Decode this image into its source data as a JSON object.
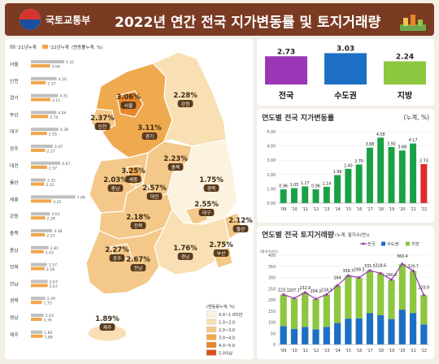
{
  "header": {
    "agency": "국토교통부",
    "title": "2022년 연간 전국 지가변동률 및 토지거래량"
  },
  "legend_top": {
    "y2021": "'21년누계",
    "y2022": "'22년누계",
    "note": "(변동률누계, %)"
  },
  "regions": [
    {
      "name": "서울",
      "v2021": 5.31,
      "v2022": 3.06
    },
    {
      "name": "인천",
      "v2021": 4.1,
      "v2022": 2.37
    },
    {
      "name": "경기",
      "v2021": 4.31,
      "v2022": 3.11
    },
    {
      "name": "부산",
      "v2021": 4.04,
      "v2022": 2.75
    },
    {
      "name": "대구",
      "v2021": 4.38,
      "v2022": 2.55
    },
    {
      "name": "광주",
      "v2021": 3.47,
      "v2022": 2.27
    },
    {
      "name": "대전",
      "v2021": 4.67,
      "v2022": 2.57
    },
    {
      "name": "울산",
      "v2021": 2.32,
      "v2022": 2.12
    },
    {
      "name": "세종",
      "v2021": 7.06,
      "v2022": 3.25
    },
    {
      "name": "강원",
      "v2021": 3.03,
      "v2022": 2.28
    },
    {
      "name": "충북",
      "v2021": 3.38,
      "v2022": 2.23
    },
    {
      "name": "충남",
      "v2021": 2.81,
      "v2022": 2.03
    },
    {
      "name": "전북",
      "v2021": 2.57,
      "v2022": 2.18
    },
    {
      "name": "전남",
      "v2021": 2.67,
      "v2022": 2.67
    },
    {
      "name": "경북",
      "v2021": 2.29,
      "v2022": 1.75
    },
    {
      "name": "경남",
      "v2021": 2.03,
      "v2022": 1.76
    },
    {
      "name": "제주",
      "v2021": 1.85,
      "v2022": 1.89
    }
  ],
  "map_labels": [
    {
      "name": "서울",
      "value": "3.06%"
    },
    {
      "name": "인천",
      "value": "2.37%"
    },
    {
      "name": "경기",
      "value": "3.11%"
    },
    {
      "name": "강원",
      "value": "2.28%"
    },
    {
      "name": "충북",
      "value": "2.23%"
    },
    {
      "name": "세종",
      "value": "3.25%"
    },
    {
      "name": "충남",
      "value": "2.03%"
    },
    {
      "name": "대전",
      "value": "2.57%"
    },
    {
      "name": "경북",
      "value": "1.75%"
    },
    {
      "name": "대구",
      "value": "2.55%"
    },
    {
      "name": "전북",
      "value": "2.18%"
    },
    {
      "name": "울산",
      "value": "2.12%"
    },
    {
      "name": "광주",
      "value": "2.27%"
    },
    {
      "name": "전남",
      "value": "2.67%"
    },
    {
      "name": "경남",
      "value": "1.76%"
    },
    {
      "name": "부산",
      "value": "2.75%"
    },
    {
      "name": "제주",
      "value": "1.89%"
    }
  ],
  "map_legend": {
    "title": "(변동률누계, %)",
    "bins": [
      {
        "label": "0.0~1.0미만",
        "color": "#fbf2df"
      },
      {
        "label": "1.0~2.0",
        "color": "#f8e0b4"
      },
      {
        "label": "2.0~3.0",
        "color": "#f4c889"
      },
      {
        "label": "3.0~4.0",
        "color": "#efa94e"
      },
      {
        "label": "4.0~5.0",
        "color": "#e8862a"
      },
      {
        "label": "5.0이상",
        "color": "#d94f1c"
      }
    ]
  },
  "summary": [
    {
      "label": "전국",
      "value": "2.73",
      "color": "#9b37b6"
    },
    {
      "label": "수도권",
      "value": "3.03",
      "color": "#1d6fc4"
    },
    {
      "label": "지방",
      "value": "2.24",
      "color": "#8dc63f"
    }
  ],
  "chart_data": [
    {
      "type": "bar",
      "title": "연도별 전국 지가변동률",
      "unit": "(누계, %)",
      "categories": [
        "'09",
        "'10",
        "'11",
        "'12",
        "'13",
        "'14",
        "'15",
        "'16",
        "'17",
        "'18",
        "'19",
        "'20",
        "'21",
        "'22"
      ],
      "values": [
        0.96,
        1.05,
        1.17,
        0.96,
        1.14,
        1.96,
        2.4,
        2.7,
        3.88,
        4.58,
        3.92,
        3.68,
        4.17,
        2.73
      ],
      "ylim": [
        0,
        5
      ],
      "yticks": [
        "0.00",
        "1.00",
        "2.00",
        "3.00",
        "4.00",
        "5.00"
      ],
      "color_bar": "#1aa146",
      "color_last": "#e02b2b"
    },
    {
      "type": "bar",
      "title": "연도별 전국 토지거래량",
      "unit": "(누계, 필지수(만))",
      "ylabel": "(필지수(만))",
      "categories": [
        "'09",
        "'10",
        "'11",
        "'12",
        "'13",
        "'14",
        "'15",
        "'16",
        "'17",
        "'18",
        "'19",
        "'20",
        "'21",
        "'22"
      ],
      "series": [
        {
          "name": "전국",
          "values": [
            223.1,
            207.1,
            232.9,
            204.2,
            224.1,
            264.0,
            308.7,
            299.5,
            331.5,
            318.6,
            290.2,
            360.4,
            329.7,
            220.9
          ],
          "color": "#9b37b6"
        },
        {
          "name": "수도권",
          "values": [
            82,
            70,
            79,
            68,
            79,
            96,
            116,
            117,
            140,
            131,
            114,
            156,
            140,
            90
          ],
          "color": "#1d6fc4"
        },
        {
          "name": "지방",
          "values": [
            141,
            137,
            154,
            136,
            145,
            168,
            193,
            182,
            192,
            188,
            176,
            204,
            190,
            131
          ],
          "color": "#8dc63f"
        }
      ],
      "value_labels": [
        "223.1",
        "207.1",
        "232.9",
        "204.2",
        "224.1",
        "264",
        "308.7",
        "299.5",
        "331.5",
        "318.6",
        "290.2",
        "360.4",
        "329.7",
        "220.9"
      ],
      "ylim": [
        0,
        400
      ],
      "yticks": [
        "0",
        "50",
        "100",
        "150",
        "200",
        "250",
        "300",
        "350",
        "400"
      ]
    }
  ]
}
